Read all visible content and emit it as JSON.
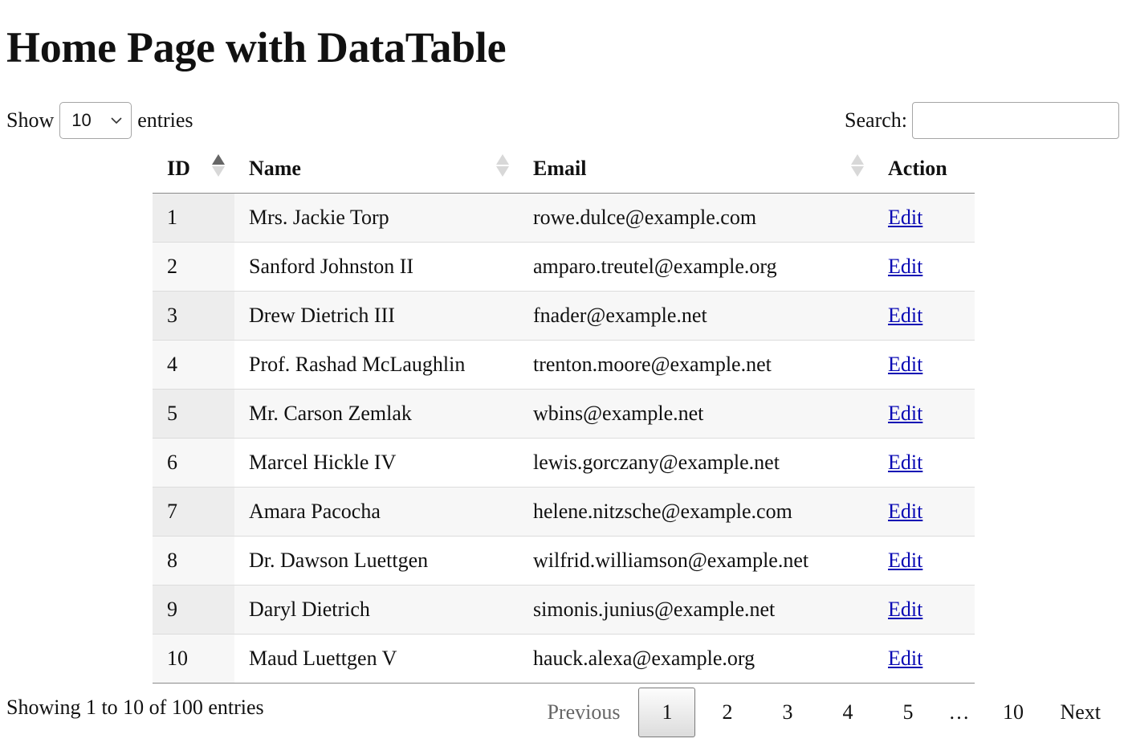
{
  "page": {
    "title": "Home Page with DataTable"
  },
  "length": {
    "show_label": "Show",
    "value": "10",
    "entries_label": "entries"
  },
  "search": {
    "label": "Search:",
    "value": ""
  },
  "table": {
    "columns": [
      {
        "key": "id",
        "label": "ID",
        "sort": "asc"
      },
      {
        "key": "name",
        "label": "Name",
        "sort": "none"
      },
      {
        "key": "email",
        "label": "Email",
        "sort": "none"
      },
      {
        "key": "action",
        "label": "Action",
        "sort": "disabled"
      }
    ],
    "rows": [
      {
        "id": "1",
        "name": "Mrs. Jackie Torp",
        "email": "rowe.dulce@example.com",
        "action": "Edit"
      },
      {
        "id": "2",
        "name": "Sanford Johnston II",
        "email": "amparo.treutel@example.org",
        "action": "Edit"
      },
      {
        "id": "3",
        "name": "Drew Dietrich III",
        "email": "fnader@example.net",
        "action": "Edit"
      },
      {
        "id": "4",
        "name": "Prof. Rashad McLaughlin",
        "email": "trenton.moore@example.net",
        "action": "Edit"
      },
      {
        "id": "5",
        "name": "Mr. Carson Zemlak",
        "email": "wbins@example.net",
        "action": "Edit"
      },
      {
        "id": "6",
        "name": "Marcel Hickle IV",
        "email": "lewis.gorczany@example.net",
        "action": "Edit"
      },
      {
        "id": "7",
        "name": "Amara Pacocha",
        "email": "helene.nitzsche@example.com",
        "action": "Edit"
      },
      {
        "id": "8",
        "name": "Dr. Dawson Luettgen",
        "email": "wilfrid.williamson@example.net",
        "action": "Edit"
      },
      {
        "id": "9",
        "name": "Daryl Dietrich",
        "email": "simonis.junius@example.net",
        "action": "Edit"
      },
      {
        "id": "10",
        "name": "Maud Luettgen V",
        "email": "hauck.alexa@example.org",
        "action": "Edit"
      }
    ]
  },
  "info": {
    "text": "Showing 1 to 10 of 100 entries"
  },
  "pagination": {
    "previous": "Previous",
    "pages": [
      "1",
      "2",
      "3",
      "4",
      "5"
    ],
    "ellipsis": "…",
    "last": "10",
    "next": "Next",
    "current": "1"
  },
  "colors": {
    "link": "#0a0ab4",
    "header_border": "#8a8a8a",
    "row_alt": "#f7f7f7"
  },
  "icons": {
    "sort_asc": "sort-asc-icon",
    "sort_both": "sort-both-icon",
    "select_caret": "chevron-down-icon"
  }
}
